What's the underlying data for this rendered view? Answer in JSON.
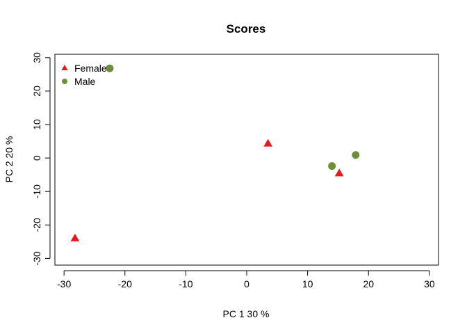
{
  "chart_data": {
    "type": "scatter",
    "title": "Scores",
    "xlabel": "PC 1 30 %",
    "ylabel": "PC 2 20 %",
    "xlim": [
      -31.5,
      31.5
    ],
    "ylim": [
      -32,
      31
    ],
    "xticks": [
      -30,
      -20,
      -10,
      0,
      10,
      20,
      30
    ],
    "yticks": [
      -30,
      -20,
      -10,
      0,
      10,
      20,
      30
    ],
    "grid": false,
    "legend_position": "top-left",
    "series": [
      {
        "name": "Female",
        "marker": "triangle",
        "color": "#e41a1c",
        "points": [
          {
            "x": -28.2,
            "y": -24.0
          },
          {
            "x": 3.5,
            "y": 4.3
          },
          {
            "x": 15.2,
            "y": -4.6
          }
        ]
      },
      {
        "name": "Male",
        "marker": "circle",
        "color": "#6b8e3a",
        "points": [
          {
            "x": -22.5,
            "y": 26.8
          },
          {
            "x": 14.0,
            "y": -2.4
          },
          {
            "x": 17.9,
            "y": 0.9
          }
        ]
      }
    ]
  }
}
